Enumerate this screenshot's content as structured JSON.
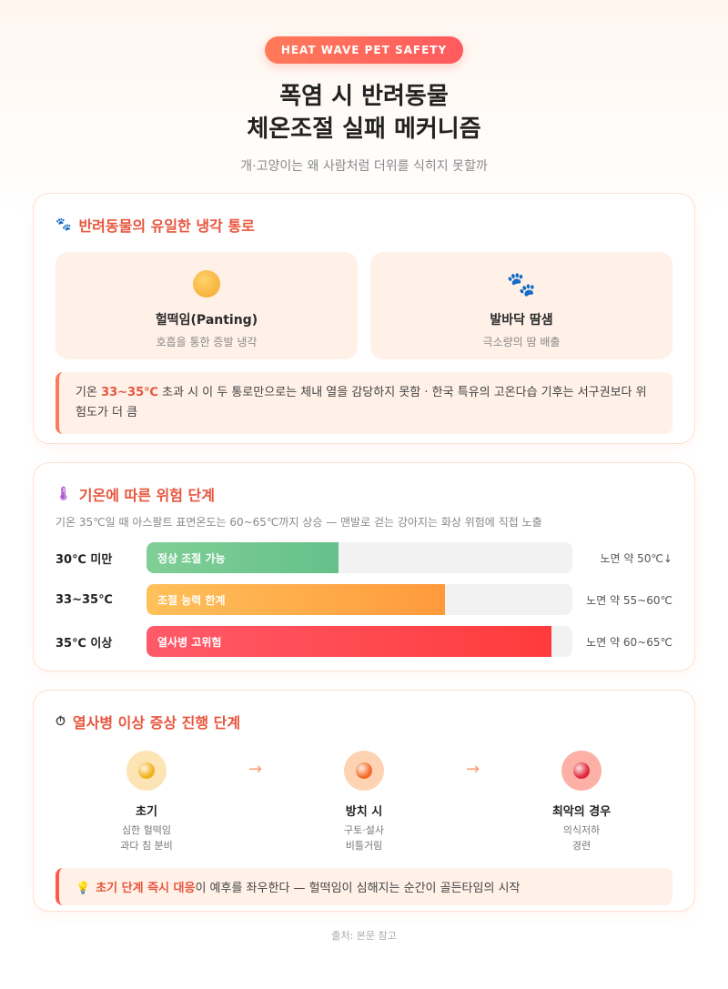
{
  "header": {
    "badge": "HEAT WAVE PET SAFETY",
    "title_line1": "폭염 시 반려동물",
    "title_line2": "체온조절 실패 메커니즘",
    "subtitle": "개·고양이는 왜 사람처럼 더위를 식히지 못할까"
  },
  "cooling": {
    "icon": "paw-icon",
    "title": "반려동물의 유일한 냉각 통로",
    "routes": [
      {
        "icon": "panting-face-icon",
        "name": "헐떡임(Panting)",
        "desc": "호흡을 통한 증발 냉각"
      },
      {
        "icon": "paw-icon",
        "name": "발바닥 땀샘",
        "desc": "극소량의 땀 배출"
      }
    ],
    "note_prefix": "기온 ",
    "note_highlight": "33~35℃",
    "note_suffix": " 초과 시 이 두 통로만으로는 체내 열을 감당하지 못함 · 한국 특유의 고온다습 기후는 서구권보다 위험도가 더 큼"
  },
  "risk": {
    "icon": "thermometer-icon",
    "title": "기온에 따른 위험 단계",
    "subtitle": "기온 35℃일 때 아스팔트 표면온도는 60~65℃까지 상승 — 맨발로 걷는 강아지는 화상 위험에 직접 노출",
    "levels": [
      {
        "label": "30℃ 미만",
        "bar_text": "정상 조절 가능",
        "fill_pct": 45,
        "road": "노면 약 50℃↓",
        "color_from": "#7fcf96",
        "color_to": "#66c08a"
      },
      {
        "label": "33~35℃",
        "bar_text": "조절 능력 한계",
        "fill_pct": 70,
        "road": "노면 약 55~60℃",
        "color_from": "#ffc05a",
        "color_to": "#ff9a3c"
      },
      {
        "label": "35℃ 이상",
        "bar_text": "열사병 고위험",
        "fill_pct": 95,
        "road": "노면 약 60~65℃",
        "color_from": "#ff5a6a",
        "color_to": "#ff3b3b"
      }
    ]
  },
  "symptoms": {
    "icon": "stopwatch-icon",
    "title": "열사병 이상 증상 진행 단계",
    "steps": [
      {
        "name": "초기",
        "desc1": "심한 헐떡임",
        "desc2": "과다 침 분비",
        "bg": "#fde4b4",
        "dot": "#f2b21c"
      },
      {
        "name": "방치 시",
        "desc1": "구토·설사",
        "desc2": "비틀거림",
        "bg": "#fdd3b4",
        "dot": "#f46a2a"
      },
      {
        "name": "최악의 경우",
        "desc1": "의식저하",
        "desc2": "경련",
        "bg": "#fcb0a6",
        "dot": "#e0283e"
      }
    ],
    "arrow": "→",
    "tip_icon": "lightbulb-icon",
    "tip_highlight": "초기 단계 즉시 대응",
    "tip_suffix": "이 예후를 좌우한다 — 헐떡임이 심해지는 순간이 골든타임의 시작"
  },
  "source": "출처: 본문 참고"
}
